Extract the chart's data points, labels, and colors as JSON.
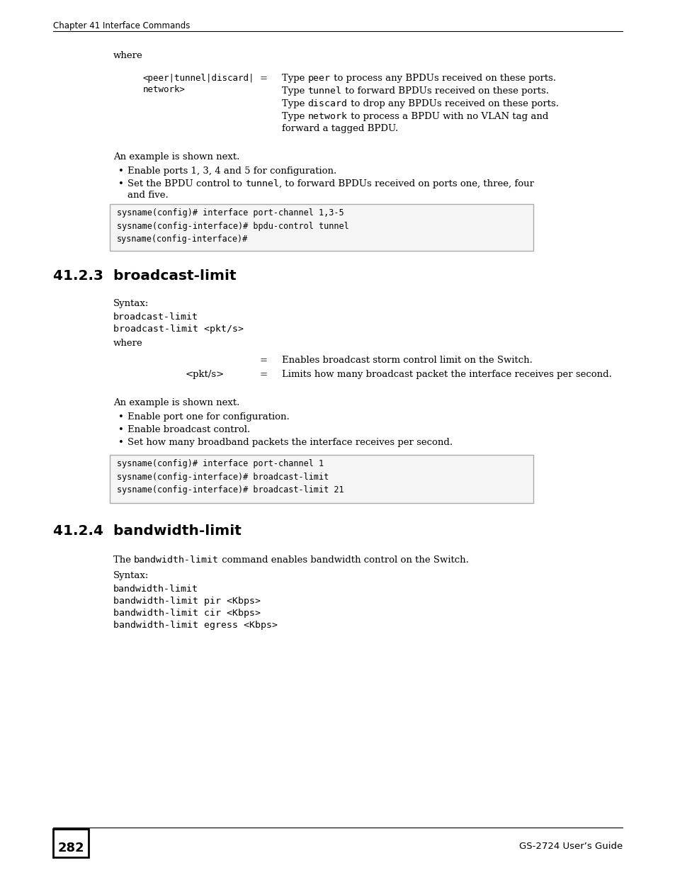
{
  "header_text": "Chapter 41 Interface Commands",
  "footer_page": "282",
  "footer_right": "GS-2724 User’s Guide",
  "bg_color": "#ffffff",
  "s1_code": "sysname(config)# interface port-channel 1,3-5\nsysname(config-interface)# bpdu-control tunnel\nsysname(config-interface)#",
  "s2_heading": "41.2.3  broadcast-limit",
  "s2_syntax": "broadcast-limit\nbroadcast-limit <pkt/s>",
  "s2_code": "sysname(config)# interface port-channel 1\nsysname(config-interface)# broadcast-limit\nsysname(config-interface)# broadcast-limit 21",
  "s3_heading": "41.2.4  bandwidth-limit",
  "s3_syntax": "bandwidth-limit\nbandwidth-limit pir <Kbps>\nbandwidth-limit cir <Kbps>\nbandwidth-limit egress <Kbps>"
}
